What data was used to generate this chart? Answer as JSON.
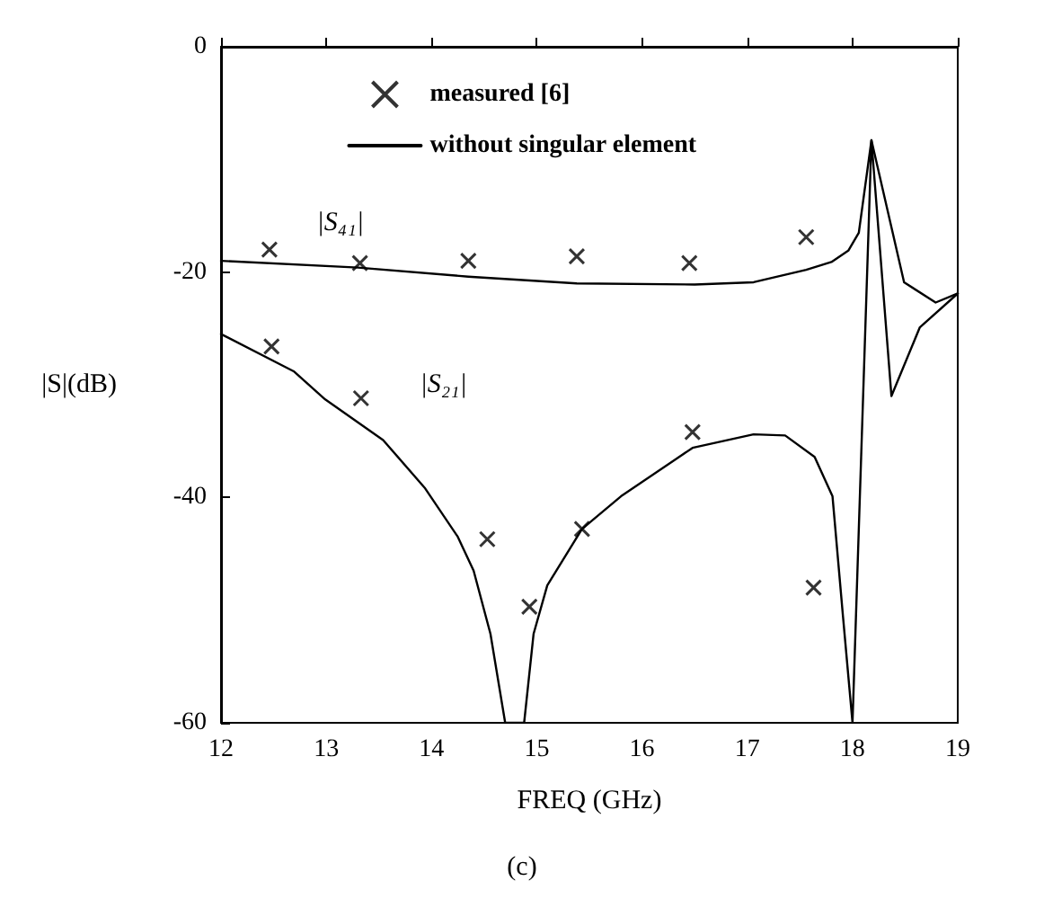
{
  "chart_data": {
    "type": "line",
    "xlabel": "FREQ (GHz)",
    "ylabel": "|S|(dB)",
    "xlim": [
      12,
      19
    ],
    "xticks": [
      12,
      13,
      14,
      15,
      16,
      17,
      18,
      19
    ],
    "ylim": [
      -60,
      0
    ],
    "yticks": [
      -60,
      -40,
      -20,
      0
    ],
    "grid": false,
    "legend": "top",
    "series": [
      {
        "type": "scatter",
        "name": "measured [6]",
        "color": "#000000",
        "marker": "cross",
        "x": [
          12.46,
          13.32,
          14.35,
          15.38,
          16.45,
          17.56
        ],
        "values": [
          -18.0,
          -19.2,
          -19.0,
          -18.6,
          -19.2,
          -16.9
        ]
      },
      {
        "name": "without singular element",
        "color": "#000000",
        "marker": "none",
        "line_style": "solid",
        "x": [
          12.0,
          13.3,
          14.35,
          15.38,
          16.5,
          17.06,
          17.56,
          17.8,
          17.96,
          18.06,
          18.18,
          18.49,
          18.79,
          19.0
        ],
        "values": [
          -19.0,
          -19.6,
          -20.4,
          -21.0,
          -21.1,
          -20.9,
          -19.8,
          -19.1,
          -18.1,
          -16.5,
          -8.3,
          -20.9,
          -22.7,
          -21.9
        ]
      },
      {
        "type": "scatter",
        "color": "#000000",
        "marker": "cross",
        "x": [
          12.48,
          13.33,
          14.53,
          14.93,
          15.43,
          16.48,
          17.63
        ],
        "values": [
          -26.6,
          -31.2,
          -43.7,
          -49.7,
          -42.8,
          -34.2,
          -48.0
        ]
      },
      {
        "color": "#000000",
        "marker": "none",
        "line_style": "solid",
        "x": [
          12.0,
          12.69,
          12.99,
          13.54,
          13.94,
          14.25,
          14.4,
          14.56,
          14.7,
          14.88,
          14.97,
          15.1,
          15.43,
          15.8,
          16.48,
          17.06,
          17.36,
          17.64,
          17.81,
          17.91,
          18.0,
          18.18,
          18.37,
          18.64,
          19.0
        ],
        "values": [
          -25.5,
          -28.8,
          -31.3,
          -34.9,
          -39.2,
          -43.5,
          -46.5,
          -52.1,
          -60,
          -60,
          -52.1,
          -47.8,
          -42.8,
          -39.9,
          -35.6,
          -34.4,
          -34.5,
          -36.4,
          -39.9,
          -50.6,
          -60,
          -8.3,
          -31.0,
          -24.9,
          -21.9
        ]
      }
    ],
    "annotations": [
      "|S₄₁|",
      "|S₂₁|",
      "(c)"
    ]
  }
}
